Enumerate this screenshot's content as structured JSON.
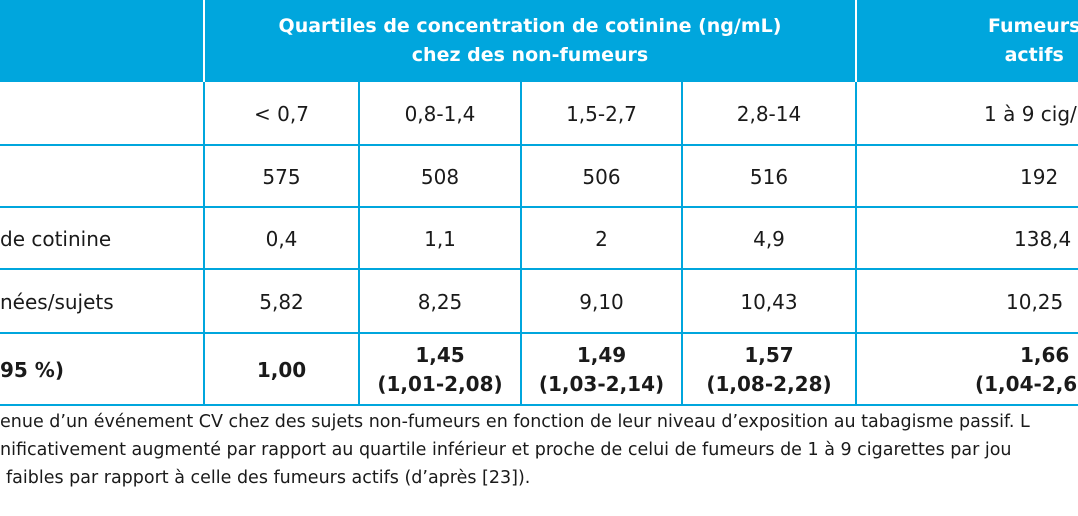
{
  "header": {
    "group_title_line1": "Quartiles de concentration de cotinine (ng/mL)",
    "group_title_line2": "chez des non-fumeurs",
    "smokers_title_line1": "Fumeurs",
    "smokers_title_line2": "actifs"
  },
  "rows": [
    {
      "label": "",
      "values": [
        "< 0,7",
        "0,8-1,4",
        "1,5-2,7",
        "2,8-14",
        "1 à 9 cig/"
      ]
    },
    {
      "label": "",
      "values": [
        "575",
        "508",
        "506",
        "516",
        "192"
      ]
    },
    {
      "label": "de cotinine",
      "values": [
        "0,4",
        "1,1",
        "2",
        "4,9",
        "138,4"
      ]
    },
    {
      "label": "nées/sujets",
      "values": [
        "5,82",
        "8,25",
        "9,10",
        "10,43",
        "10,25"
      ]
    },
    {
      "label": "95 %)",
      "values": [
        "1,00",
        "1,45",
        "1,49",
        "1,57",
        "1,66"
      ],
      "ci": [
        "",
        "(1,01-2,08)",
        "(1,03-2,14)",
        "(1,08-2,28)",
        "(1,04-2,6"
      ]
    }
  ],
  "caption": {
    "line1": "enue d’un événement CV chez des sujets non-fumeurs en fonction de leur niveau d’exposition au tabagisme passif. L",
    "line2": "nificativement augmenté par rapport au quartile inférieur et proche de celui de fumeurs de 1 à 9 cigarettes par jou",
    "line3": "faibles par rapport à celle des fumeurs actifs (d’après [23])."
  },
  "colors": {
    "header_bg": "#00a6dd",
    "rule": "#00a6dd",
    "header_text": "#ffffff",
    "body_text": "#1a1a1a"
  }
}
